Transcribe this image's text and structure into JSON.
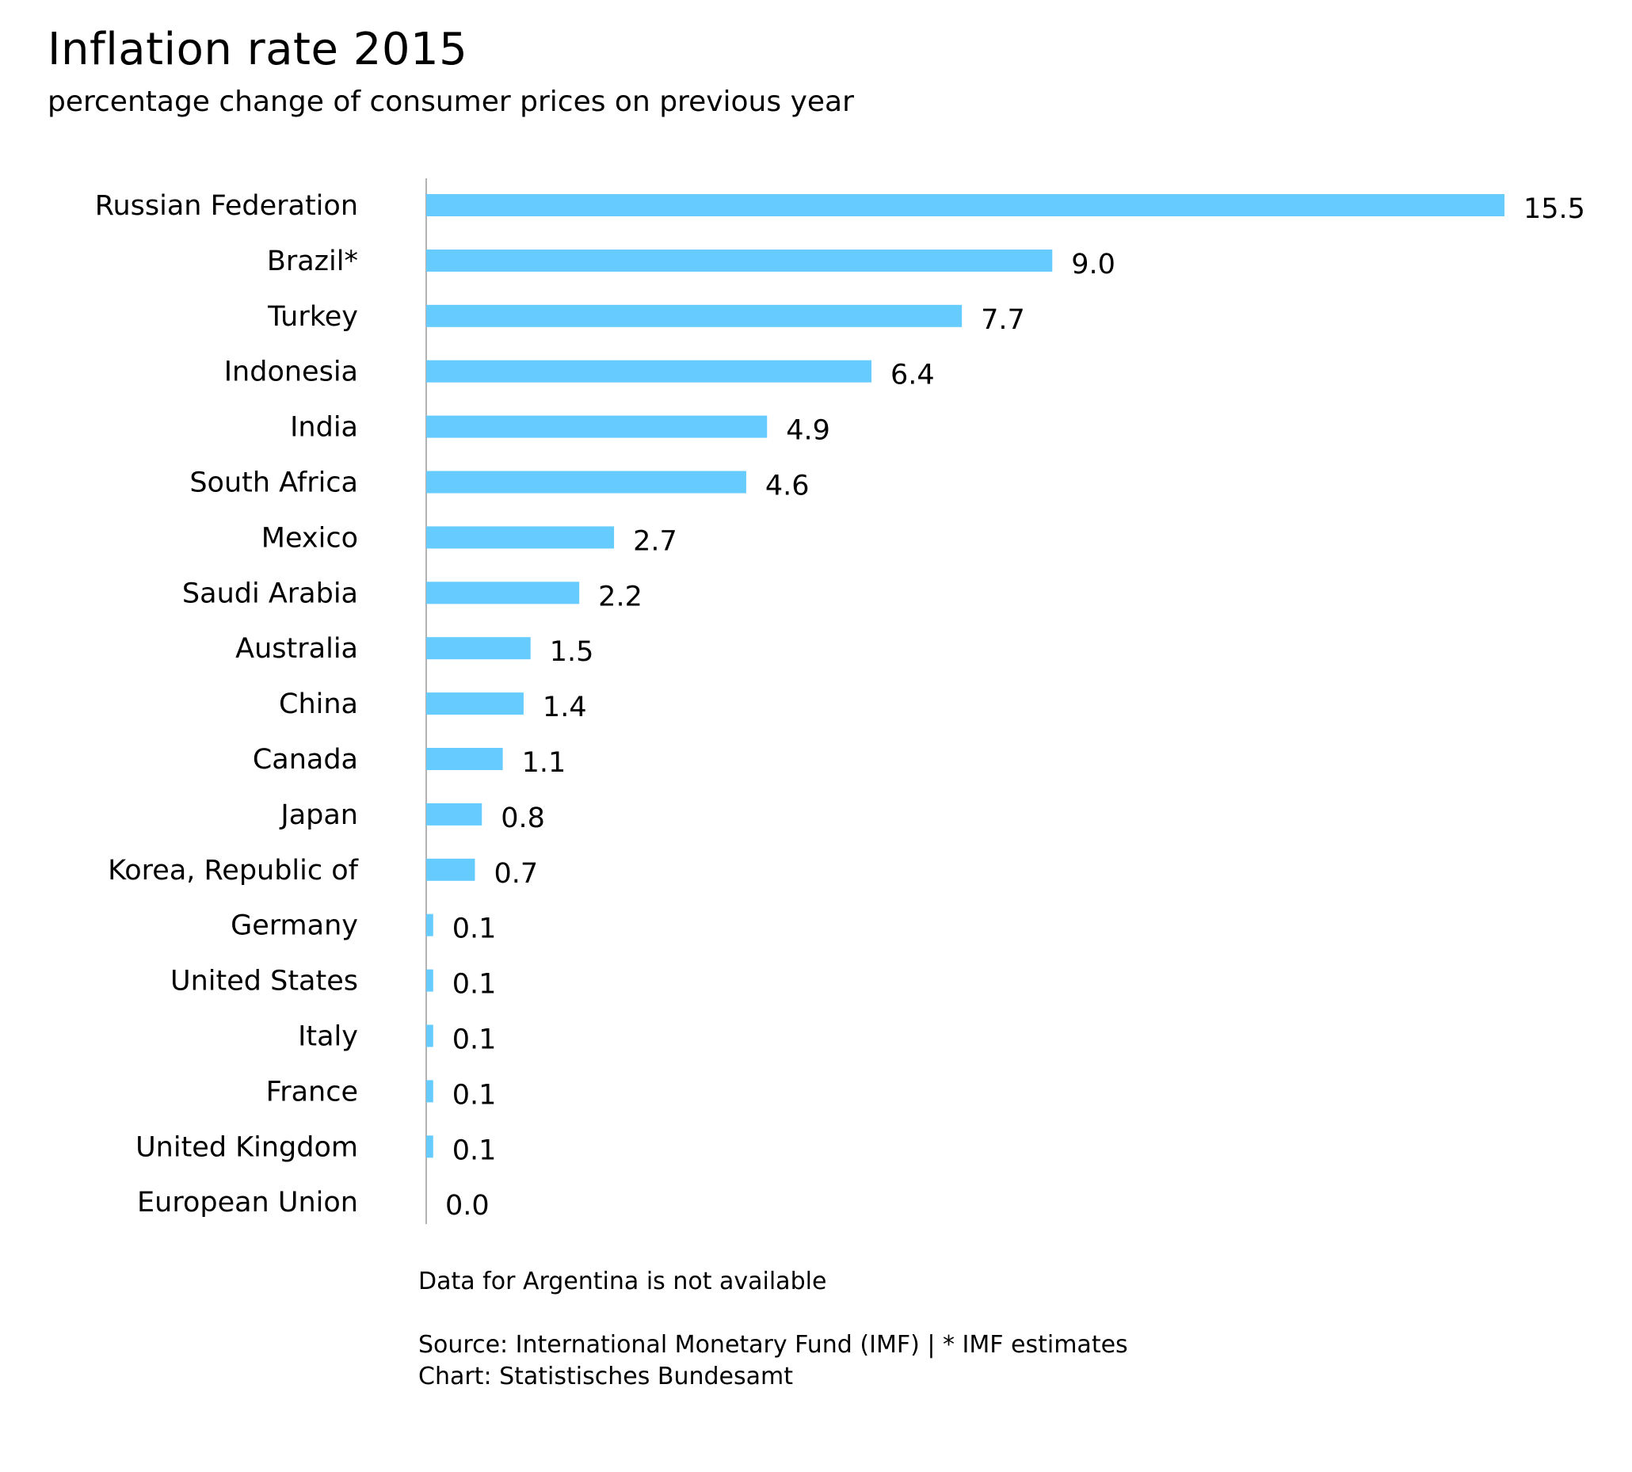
{
  "chart_data": {
    "type": "bar",
    "orientation": "horizontal",
    "title": "Inflation rate 2015",
    "subtitle": "percentage change of consumer prices on previous year",
    "categories": [
      "Russian Federation",
      "Brazil*",
      "Turkey",
      "Indonesia",
      "India",
      "South Africa",
      "Mexico",
      "Saudi Arabia",
      "Australia",
      "China",
      "Canada",
      "Japan",
      "Korea, Republic of",
      "Germany",
      "United States",
      "Italy",
      "France",
      "United Kingdom",
      "European Union"
    ],
    "values": [
      15.5,
      9.0,
      7.7,
      6.4,
      4.9,
      4.6,
      2.7,
      2.2,
      1.5,
      1.4,
      1.1,
      0.8,
      0.7,
      0.1,
      0.1,
      0.1,
      0.1,
      0.1,
      0.0
    ],
    "labels": [
      "15.5",
      "9.0",
      "7.7",
      "6.4",
      "4.9",
      "4.6",
      "2.7",
      "2.2",
      "1.5",
      "1.4",
      "1.1",
      "0.8",
      "0.7",
      "0.1",
      "0.1",
      "0.1",
      "0.1",
      "0.1",
      "0.0"
    ],
    "xlim": [
      0,
      15.5
    ],
    "bar_color": "#66ccff",
    "axis_color": "#b3b3b3",
    "note": "Data for Argentina is not available",
    "source": "Source: International Monetary Fund (IMF) | * IMF estimates",
    "credit": "Chart: Statistisches Bundesamt"
  }
}
